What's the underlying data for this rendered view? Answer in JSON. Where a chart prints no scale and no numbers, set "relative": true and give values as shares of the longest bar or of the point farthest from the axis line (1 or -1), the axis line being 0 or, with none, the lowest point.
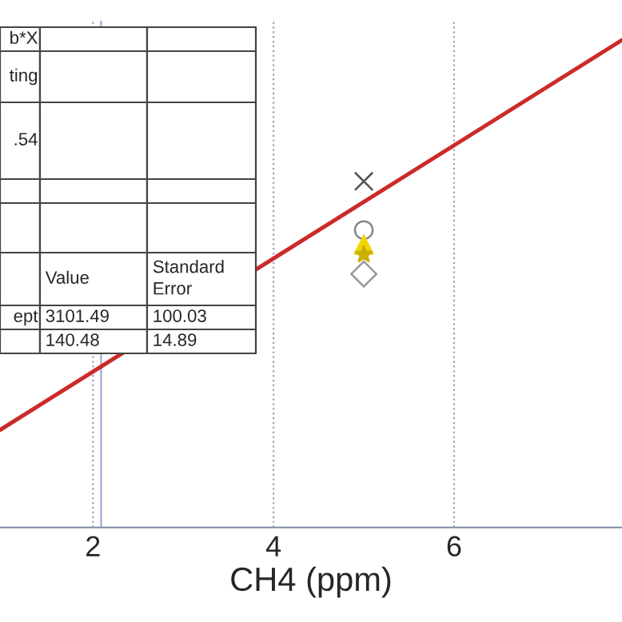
{
  "chart_data": {
    "type": "scatter",
    "relative": true,
    "xlabel": "CH4 (ppm)",
    "xlim": [
      0.97,
      7.86
    ],
    "xticks": [
      2,
      4,
      6
    ],
    "tick_labels": "x",
    "grid": "x",
    "ref_lines": [
      {
        "axis": "x",
        "value": 2.09,
        "color": "#9fa8d8"
      }
    ],
    "series": [
      {
        "type": "line",
        "color": "#cc2a2a",
        "x": [
          0.97,
          7.86
        ],
        "values": [
          0.2,
          1.0
        ],
        "marker": "none"
      },
      {
        "color": "#555555",
        "x": [
          5
        ],
        "values": [
          0.71
        ],
        "marker": "cross"
      },
      {
        "color": "#888888",
        "x": [
          5
        ],
        "values": [
          0.61
        ],
        "marker": "circle"
      },
      {
        "color": "#f2d400",
        "x": [
          5
        ],
        "values": [
          0.58
        ],
        "marker": "triangle"
      },
      {
        "color": "#c9b000",
        "x": [
          5
        ],
        "values": [
          0.56
        ],
        "marker": "star"
      },
      {
        "color": "#999999",
        "x": [
          5
        ],
        "values": [
          0.52
        ],
        "marker": "diamond"
      }
    ],
    "annotations": [
      "b*X",
      "ting",
      ".54",
      "Value",
      "Standard Error",
      "ept",
      "3101.49",
      "100.03",
      "140.48",
      "14.89"
    ]
  }
}
